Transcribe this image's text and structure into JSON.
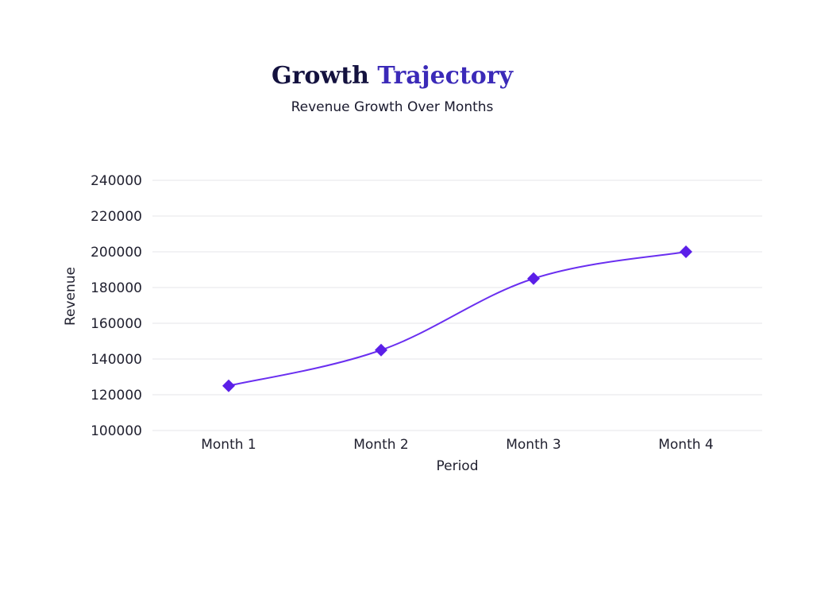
{
  "header": {
    "title_part1": "Growth",
    "title_part2": "Trajectory",
    "subtitle": "Revenue Growth Over Months"
  },
  "colors": {
    "line": "#6a2ff0",
    "marker": "#5b1fe8",
    "title_dark": "#14123f",
    "title_accent": "#3b2ab8"
  },
  "chart_data": {
    "type": "line",
    "title": "Growth Trajectory",
    "subtitle": "Revenue Growth Over Months",
    "xlabel": "Period",
    "ylabel": "Revenue",
    "categories": [
      "Month 1",
      "Month 2",
      "Month 3",
      "Month 4"
    ],
    "series": [
      {
        "name": "Revenue",
        "values": [
          125000,
          145000,
          185000,
          200000
        ]
      }
    ],
    "ylim": [
      100000,
      240000
    ],
    "yticks": [
      100000,
      120000,
      140000,
      160000,
      180000,
      200000,
      220000,
      240000
    ],
    "grid": true,
    "marker": "diamond",
    "curve": "smooth"
  }
}
